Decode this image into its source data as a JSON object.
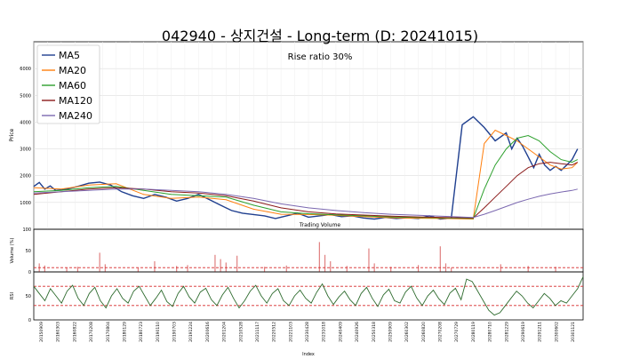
{
  "chart_data": [
    {
      "type": "line",
      "title": "042940 - 상지건설 - Long-term (D: 20241015)",
      "annotation": "Rise ratio 30%",
      "ylabel": "Price",
      "ylim": [
        0,
        7000
      ],
      "yticks": [
        1000,
        2000,
        3000,
        4000,
        5000,
        6000
      ],
      "grid": true,
      "legend_position": "top-left",
      "x_range": [
        0,
        100
      ],
      "series": [
        {
          "name": "MA5",
          "color": "#1f3f8f",
          "x": [
            0,
            1,
            2,
            3,
            4,
            6,
            8,
            10,
            12,
            14,
            16,
            18,
            20,
            22,
            24,
            26,
            28,
            30,
            32,
            34,
            36,
            38,
            40,
            42,
            44,
            46,
            48,
            50,
            52,
            54,
            56,
            58,
            60,
            62,
            64,
            66,
            68,
            70,
            72,
            74,
            76,
            78,
            80,
            82,
            84,
            86,
            87,
            88,
            89,
            90,
            91,
            92,
            93,
            94,
            95,
            96,
            97,
            98,
            99
          ],
          "y": [
            1600,
            1750,
            1500,
            1620,
            1450,
            1500,
            1600,
            1720,
            1760,
            1650,
            1400,
            1250,
            1150,
            1300,
            1200,
            1050,
            1150,
            1300,
            1100,
            900,
            700,
            600,
            550,
            500,
            400,
            500,
            600,
            450,
            500,
            550,
            470,
            500,
            420,
            380,
            440,
            400,
            430,
            400,
            500,
            380,
            420,
            3900,
            4200,
            3800,
            3300,
            3600,
            3000,
            3400,
            3100,
            2700,
            2300,
            2800,
            2400,
            2200,
            2350,
            2200,
            2400,
            2600,
            3000
          ]
        },
        {
          "name": "MA20",
          "color": "#ff7f0e",
          "x": [
            0,
            5,
            10,
            15,
            20,
            25,
            30,
            35,
            40,
            45,
            50,
            55,
            60,
            65,
            70,
            75,
            80,
            82,
            84,
            86,
            88,
            90,
            92,
            94,
            96,
            98,
            99
          ],
          "y": [
            1550,
            1500,
            1650,
            1700,
            1300,
            1150,
            1200,
            1100,
            750,
            560,
            550,
            520,
            470,
            430,
            410,
            400,
            380,
            3200,
            3700,
            3500,
            3300,
            3000,
            2700,
            2400,
            2250,
            2300,
            2500
          ]
        },
        {
          "name": "MA60",
          "color": "#2ca02c",
          "x": [
            0,
            5,
            10,
            15,
            20,
            25,
            30,
            35,
            40,
            45,
            50,
            55,
            60,
            65,
            70,
            75,
            80,
            82,
            84,
            86,
            88,
            90,
            92,
            94,
            96,
            98,
            99
          ],
          "y": [
            1400,
            1450,
            1550,
            1600,
            1450,
            1300,
            1250,
            1200,
            900,
            650,
            580,
            540,
            500,
            460,
            440,
            420,
            400,
            1500,
            2400,
            3000,
            3400,
            3500,
            3300,
            2900,
            2600,
            2500,
            2600
          ]
        },
        {
          "name": "MA120",
          "color": "#8b1a1a",
          "x": [
            0,
            5,
            10,
            15,
            20,
            25,
            30,
            35,
            40,
            45,
            50,
            55,
            60,
            65,
            70,
            75,
            80,
            82,
            84,
            86,
            88,
            90,
            92,
            94,
            96,
            98,
            99
          ],
          "y": [
            1300,
            1400,
            1500,
            1550,
            1500,
            1400,
            1350,
            1250,
            1050,
            800,
            650,
            570,
            530,
            490,
            460,
            440,
            420,
            800,
            1200,
            1600,
            2000,
            2300,
            2450,
            2500,
            2450,
            2400,
            2500
          ]
        },
        {
          "name": "MA240",
          "color": "#7b68b0",
          "x": [
            0,
            5,
            10,
            15,
            20,
            25,
            30,
            35,
            40,
            45,
            50,
            55,
            60,
            65,
            70,
            75,
            80,
            82,
            84,
            86,
            88,
            90,
            92,
            94,
            96,
            98,
            99
          ],
          "y": [
            1350,
            1400,
            1450,
            1500,
            1500,
            1450,
            1400,
            1300,
            1150,
            950,
            800,
            700,
            620,
            560,
            520,
            480,
            440,
            560,
            700,
            850,
            1000,
            1120,
            1230,
            1320,
            1390,
            1450,
            1500
          ]
        }
      ]
    },
    {
      "type": "bar",
      "ylabel": "Volume (%)",
      "ylim": [
        0,
        100
      ],
      "yticks": [
        0,
        50,
        100
      ],
      "reference_line": 10,
      "label": "Trading Volume",
      "bars": [
        {
          "x": 1,
          "value": 20
        },
        {
          "x": 2,
          "value": 15
        },
        {
          "x": 6,
          "value": 10
        },
        {
          "x": 8,
          "value": 12
        },
        {
          "x": 12,
          "value": 45
        },
        {
          "x": 13,
          "value": 18
        },
        {
          "x": 19,
          "value": 10
        },
        {
          "x": 22,
          "value": 25
        },
        {
          "x": 26,
          "value": 14
        },
        {
          "x": 28,
          "value": 16
        },
        {
          "x": 33,
          "value": 40
        },
        {
          "x": 34,
          "value": 30
        },
        {
          "x": 35,
          "value": 22
        },
        {
          "x": 37,
          "value": 38
        },
        {
          "x": 42,
          "value": 12
        },
        {
          "x": 46,
          "value": 15
        },
        {
          "x": 52,
          "value": 70
        },
        {
          "x": 53,
          "value": 40
        },
        {
          "x": 54,
          "value": 25
        },
        {
          "x": 57,
          "value": 14
        },
        {
          "x": 61,
          "value": 55
        },
        {
          "x": 62,
          "value": 20
        },
        {
          "x": 65,
          "value": 12
        },
        {
          "x": 70,
          "value": 16
        },
        {
          "x": 74,
          "value": 60
        },
        {
          "x": 75,
          "value": 20
        },
        {
          "x": 76,
          "value": 10
        },
        {
          "x": 85,
          "value": 18
        },
        {
          "x": 90,
          "value": 14
        },
        {
          "x": 95,
          "value": 12
        }
      ]
    },
    {
      "type": "line",
      "ylabel": "RSI",
      "ylim": [
        0,
        100
      ],
      "yticks": [
        0,
        50
      ],
      "reference_lines": [
        30,
        70
      ],
      "series": [
        {
          "name": "RSI",
          "color": "#2e6b2e",
          "y": [
            70,
            55,
            40,
            65,
            50,
            35,
            60,
            72,
            45,
            30,
            55,
            68,
            40,
            25,
            50,
            65,
            45,
            35,
            60,
            70,
            50,
            30,
            45,
            62,
            38,
            28,
            55,
            70,
            48,
            35,
            58,
            66,
            42,
            30,
            52,
            68,
            45,
            25,
            40,
            60,
            72,
            50,
            35,
            55,
            65,
            40,
            30,
            50,
            62,
            45,
            35,
            58,
            75,
            50,
            32,
            48,
            60,
            42,
            30,
            55,
            68,
            45,
            28,
            52,
            64,
            40,
            35,
            58,
            70,
            46,
            30,
            50,
            62,
            44,
            32,
            56,
            66,
            42,
            85,
            80,
            60,
            40,
            20,
            10,
            15,
            30,
            45,
            60,
            50,
            35,
            25,
            40,
            55,
            45,
            30,
            40,
            35,
            50,
            65,
            90
          ]
        }
      ]
    }
  ],
  "x_axis": {
    "label": "Index",
    "ticks": [
      "20150909",
      "20160303",
      "20160822",
      "20170208",
      "20170804",
      "20180129",
      "20180723",
      "20190110",
      "20190703",
      "20191224",
      "20200616",
      "20201204",
      "20210528",
      "20211117",
      "20220512",
      "20221103",
      "20230428",
      "20231018",
      "20240409",
      "20240926",
      "20250318",
      "20250909",
      "20260302",
      "20260820",
      "20270208",
      "20270729",
      "20280119",
      "20280710",
      "20281229",
      "20290619",
      "20291211",
      "20300602",
      "20301121"
    ]
  }
}
